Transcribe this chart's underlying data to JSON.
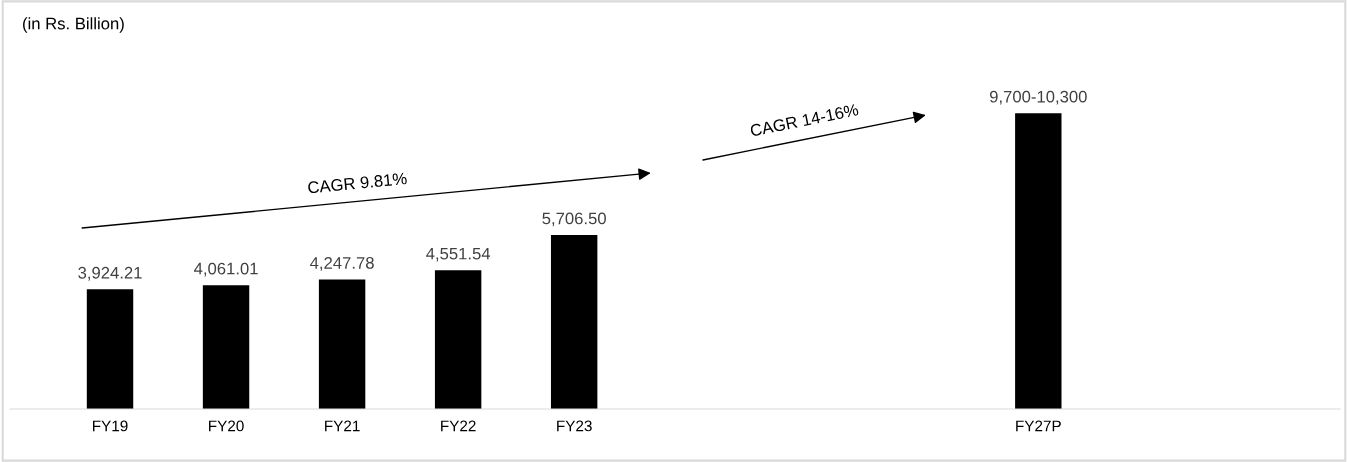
{
  "chart_data": {
    "type": "bar",
    "subtitle": "(in Rs. Billion)",
    "categories": [
      "FY19",
      "FY20",
      "FY21",
      "FY22",
      "FY23",
      null,
      null,
      null,
      "FY27P"
    ],
    "values": [
      3924.21,
      4061.01,
      4247.78,
      4551.54,
      5706.5,
      null,
      null,
      null,
      9700
    ],
    "value_labels": [
      "3,924.21",
      "4,061.01",
      "4,247.78",
      "4,551.54",
      "5,706.50",
      null,
      null,
      null,
      "9,700-10,300"
    ],
    "color": "#000000",
    "annotations": [
      "CAGR 9.81%",
      "CAGR 14-16%"
    ],
    "grid": false
  }
}
